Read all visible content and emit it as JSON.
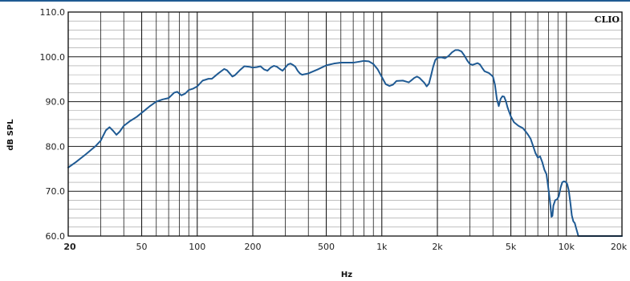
{
  "chart_data": {
    "type": "line",
    "title": "",
    "brand": "CLIO",
    "xlabel": "Hz",
    "ylabel": "dB SPL",
    "xscale": "log",
    "xlim": [
      20,
      20000
    ],
    "ylim": [
      60,
      110
    ],
    "grid": true,
    "line_color": "#1f5a93",
    "x_ticks": [
      {
        "value": 20,
        "label": "20"
      },
      {
        "value": 50,
        "label": "50"
      },
      {
        "value": 100,
        "label": "100"
      },
      {
        "value": 200,
        "label": "200"
      },
      {
        "value": 500,
        "label": "500"
      },
      {
        "value": 1000,
        "label": "1k"
      },
      {
        "value": 2000,
        "label": "2k"
      },
      {
        "value": 5000,
        "label": "5k"
      },
      {
        "value": 10000,
        "label": "10k"
      },
      {
        "value": 20000,
        "label": "20k"
      }
    ],
    "y_ticks": [
      {
        "value": 60,
        "label": "60.0"
      },
      {
        "value": 70,
        "label": "70.0"
      },
      {
        "value": 80,
        "label": "80.0"
      },
      {
        "value": 90,
        "label": "90.0"
      },
      {
        "value": 100,
        "label": "100.0"
      },
      {
        "value": 110,
        "label": "110.0"
      }
    ],
    "series": [
      {
        "points": [
          [
            20,
            75.3
          ],
          [
            22,
            76.5
          ],
          [
            25,
            78.3
          ],
          [
            28,
            80.0
          ],
          [
            30,
            81.3
          ],
          [
            32,
            83.6
          ],
          [
            33.5,
            84.3
          ],
          [
            35,
            83.5
          ],
          [
            36.5,
            82.6
          ],
          [
            38,
            83.3
          ],
          [
            40,
            84.6
          ],
          [
            43,
            85.6
          ],
          [
            47,
            86.6
          ],
          [
            50,
            87.5
          ],
          [
            55,
            88.9
          ],
          [
            60,
            90.0
          ],
          [
            65,
            90.5
          ],
          [
            70,
            90.8
          ],
          [
            75,
            92.0
          ],
          [
            78,
            92.2
          ],
          [
            82,
            91.4
          ],
          [
            86,
            91.8
          ],
          [
            90,
            92.6
          ],
          [
            95,
            92.9
          ],
          [
            100,
            93.4
          ],
          [
            107,
            94.7
          ],
          [
            115,
            95.1
          ],
          [
            120,
            95.1
          ],
          [
            130,
            96.3
          ],
          [
            140,
            97.3
          ],
          [
            145,
            97.0
          ],
          [
            150,
            96.3
          ],
          [
            155,
            95.6
          ],
          [
            160,
            95.9
          ],
          [
            170,
            97.0
          ],
          [
            180,
            97.9
          ],
          [
            190,
            97.8
          ],
          [
            200,
            97.6
          ],
          [
            210,
            97.7
          ],
          [
            220,
            97.9
          ],
          [
            230,
            97.2
          ],
          [
            240,
            96.9
          ],
          [
            250,
            97.6
          ],
          [
            260,
            98.0
          ],
          [
            270,
            97.8
          ],
          [
            280,
            97.3
          ],
          [
            290,
            96.9
          ],
          [
            300,
            97.6
          ],
          [
            310,
            98.3
          ],
          [
            320,
            98.5
          ],
          [
            330,
            98.2
          ],
          [
            340,
            97.8
          ],
          [
            350,
            96.9
          ],
          [
            360,
            96.3
          ],
          [
            370,
            96.0
          ],
          [
            400,
            96.3
          ],
          [
            450,
            97.2
          ],
          [
            500,
            98.1
          ],
          [
            550,
            98.5
          ],
          [
            600,
            98.7
          ],
          [
            700,
            98.7
          ],
          [
            750,
            98.9
          ],
          [
            800,
            99.1
          ],
          [
            850,
            99.0
          ],
          [
            900,
            98.4
          ],
          [
            950,
            97.2
          ],
          [
            1000,
            95.5
          ],
          [
            1050,
            93.9
          ],
          [
            1100,
            93.5
          ],
          [
            1150,
            93.8
          ],
          [
            1200,
            94.6
          ],
          [
            1300,
            94.7
          ],
          [
            1400,
            94.3
          ],
          [
            1450,
            94.8
          ],
          [
            1500,
            95.3
          ],
          [
            1550,
            95.6
          ],
          [
            1600,
            95.3
          ],
          [
            1700,
            94.2
          ],
          [
            1750,
            93.4
          ],
          [
            1800,
            94.0
          ],
          [
            1850,
            95.9
          ],
          [
            1900,
            97.9
          ],
          [
            1950,
            99.3
          ],
          [
            2000,
            99.8
          ],
          [
            2100,
            99.9
          ],
          [
            2200,
            99.7
          ],
          [
            2300,
            100.2
          ],
          [
            2400,
            101.0
          ],
          [
            2500,
            101.5
          ],
          [
            2600,
            101.5
          ],
          [
            2700,
            101.2
          ],
          [
            2800,
            100.3
          ],
          [
            2900,
            99.2
          ],
          [
            3000,
            98.4
          ],
          [
            3100,
            98.2
          ],
          [
            3200,
            98.4
          ],
          [
            3300,
            98.6
          ],
          [
            3400,
            98.3
          ],
          [
            3500,
            97.5
          ],
          [
            3600,
            96.8
          ],
          [
            3800,
            96.4
          ],
          [
            4000,
            95.6
          ],
          [
            4100,
            93.8
          ],
          [
            4200,
            90.6
          ],
          [
            4300,
            89.0
          ],
          [
            4400,
            90.6
          ],
          [
            4500,
            91.2
          ],
          [
            4600,
            91.1
          ],
          [
            4700,
            90.1
          ],
          [
            4800,
            88.7
          ],
          [
            5000,
            86.7
          ],
          [
            5200,
            85.4
          ],
          [
            5500,
            84.6
          ],
          [
            5800,
            84.1
          ],
          [
            6000,
            83.4
          ],
          [
            6200,
            82.6
          ],
          [
            6400,
            81.7
          ],
          [
            6600,
            80.1
          ],
          [
            6800,
            78.5
          ],
          [
            7000,
            77.5
          ],
          [
            7200,
            77.8
          ],
          [
            7400,
            76.5
          ],
          [
            7600,
            74.8
          ],
          [
            7800,
            73.8
          ],
          [
            7900,
            72.1
          ],
          [
            8000,
            70.4
          ],
          [
            8100,
            68.6
          ],
          [
            8200,
            66.7
          ],
          [
            8300,
            64.3
          ],
          [
            8400,
            64.5
          ],
          [
            8500,
            66.8
          ],
          [
            8700,
            68.0
          ],
          [
            8900,
            68.2
          ],
          [
            9100,
            68.9
          ],
          [
            9300,
            70.8
          ],
          [
            9500,
            72.0
          ],
          [
            9700,
            72.2
          ],
          [
            9900,
            72.1
          ],
          [
            10100,
            71.6
          ],
          [
            10300,
            70.2
          ],
          [
            10500,
            67.5
          ],
          [
            10700,
            64.6
          ],
          [
            10900,
            63.3
          ],
          [
            11100,
            62.9
          ],
          [
            11300,
            61.7
          ],
          [
            11500,
            60.6
          ],
          [
            11600,
            60.0
          ],
          [
            12000,
            60.0
          ],
          [
            20000,
            60.0
          ]
        ]
      }
    ]
  }
}
